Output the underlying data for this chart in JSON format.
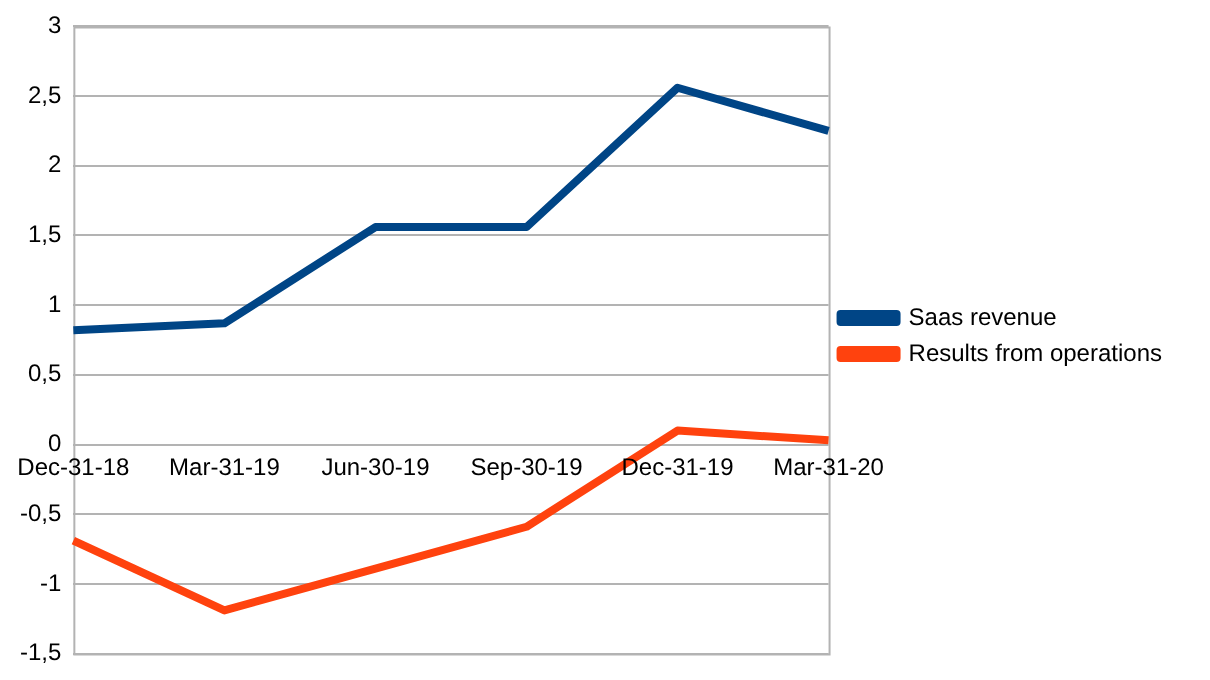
{
  "chart_data": {
    "type": "line",
    "categories": [
      "Dec-31-18",
      "Mar-31-19",
      "Jun-30-19",
      "Sep-30-19",
      "Dec-31-19",
      "Mar-31-20"
    ],
    "series": [
      {
        "name": "Saas revenue",
        "color": "#004586",
        "values": [
          0.82,
          0.87,
          1.56,
          1.56,
          2.56,
          2.25
        ]
      },
      {
        "name": "Results from operations",
        "color": "#ff420e",
        "values": [
          -0.69,
          -1.19,
          -0.89,
          -0.59,
          0.1,
          0.03
        ]
      }
    ],
    "ylim": [
      -1.5,
      3
    ],
    "yticks": [
      {
        "value": -1.5,
        "label": "-1,5"
      },
      -1,
      {
        "value": -0.5,
        "label": "-0,5"
      },
      0,
      {
        "value": 0.5,
        "label": "0,5"
      },
      1,
      {
        "value": 1.5,
        "label": "1,5"
      },
      2,
      {
        "value": 2.5,
        "label": "2,5"
      },
      3
    ],
    "grid": "y",
    "legend": "right",
    "marker": "none",
    "line_style": "solid"
  }
}
